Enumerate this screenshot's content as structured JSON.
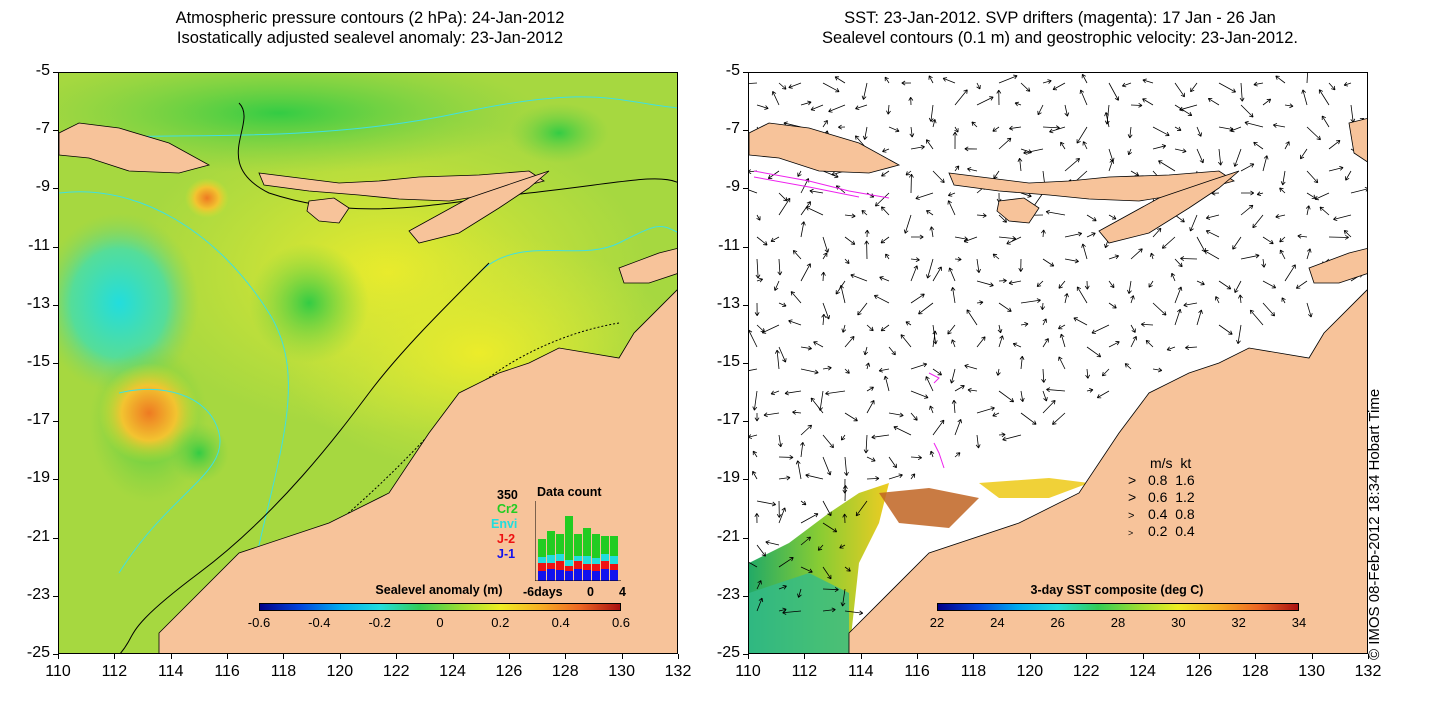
{
  "left_map": {
    "title_line1": "Atmospheric pressure contours (2 hPa): 24-Jan-2012",
    "title_line2": "Isostatically adjusted sealevel anomaly: 23-Jan-2012",
    "colorbar_title": "Sealevel anomaly (m)",
    "colorbar_labels": [
      "-0.6",
      "-0.4",
      "-0.2",
      "0",
      "0.2",
      "0.4",
      "0.6"
    ],
    "inset": {
      "max_label": "350",
      "title": "Data count",
      "satellites": [
        {
          "name": "Cr2",
          "color": "#22cc22"
        },
        {
          "name": "Envi",
          "color": "#22dddd"
        },
        {
          "name": "J-2",
          "color": "#ee1111"
        },
        {
          "name": "J-1",
          "color": "#1111ee"
        }
      ],
      "xaxis_labels": [
        "-6days",
        "0",
        "4"
      ]
    }
  },
  "right_map": {
    "title_line1": "SST: 23-Jan-2012. SVP drifters (magenta): 17 Jan - 26 Jan",
    "title_line2": "Sealevel contours (0.1 m) and geostrophic velocity: 23-Jan-2012.",
    "colorbar_title": "3-day SST composite (deg C)",
    "colorbar_labels": [
      "22",
      "24",
      "26",
      "28",
      "30",
      "32",
      "34"
    ],
    "speed_legend": {
      "header_ms": "m/s",
      "header_kt": "kt",
      "rows": [
        {
          "ms": "0.8",
          "kt": "1.6"
        },
        {
          "ms": "0.6",
          "kt": "1.2"
        },
        {
          "ms": "0.4",
          "kt": "0.8"
        },
        {
          "ms": "0.2",
          "kt": "0.4"
        }
      ]
    }
  },
  "axes": {
    "y_ticks": [
      "-5",
      "-7",
      "-9",
      "-11",
      "-13",
      "-15",
      "-17",
      "-19",
      "-21",
      "-23",
      "-25"
    ],
    "x_ticks": [
      "110",
      "112",
      "114",
      "116",
      "118",
      "120",
      "122",
      "124",
      "126",
      "128",
      "130",
      "132"
    ]
  },
  "copyright": "© IMOS 08-Feb-2012 18:34 Hobart Time",
  "colors": {
    "land": "#f7c39a",
    "sea_base": "#9ad44a",
    "contour_cyan": "#40e0e0",
    "drifter_magenta": "#ee22ee"
  }
}
